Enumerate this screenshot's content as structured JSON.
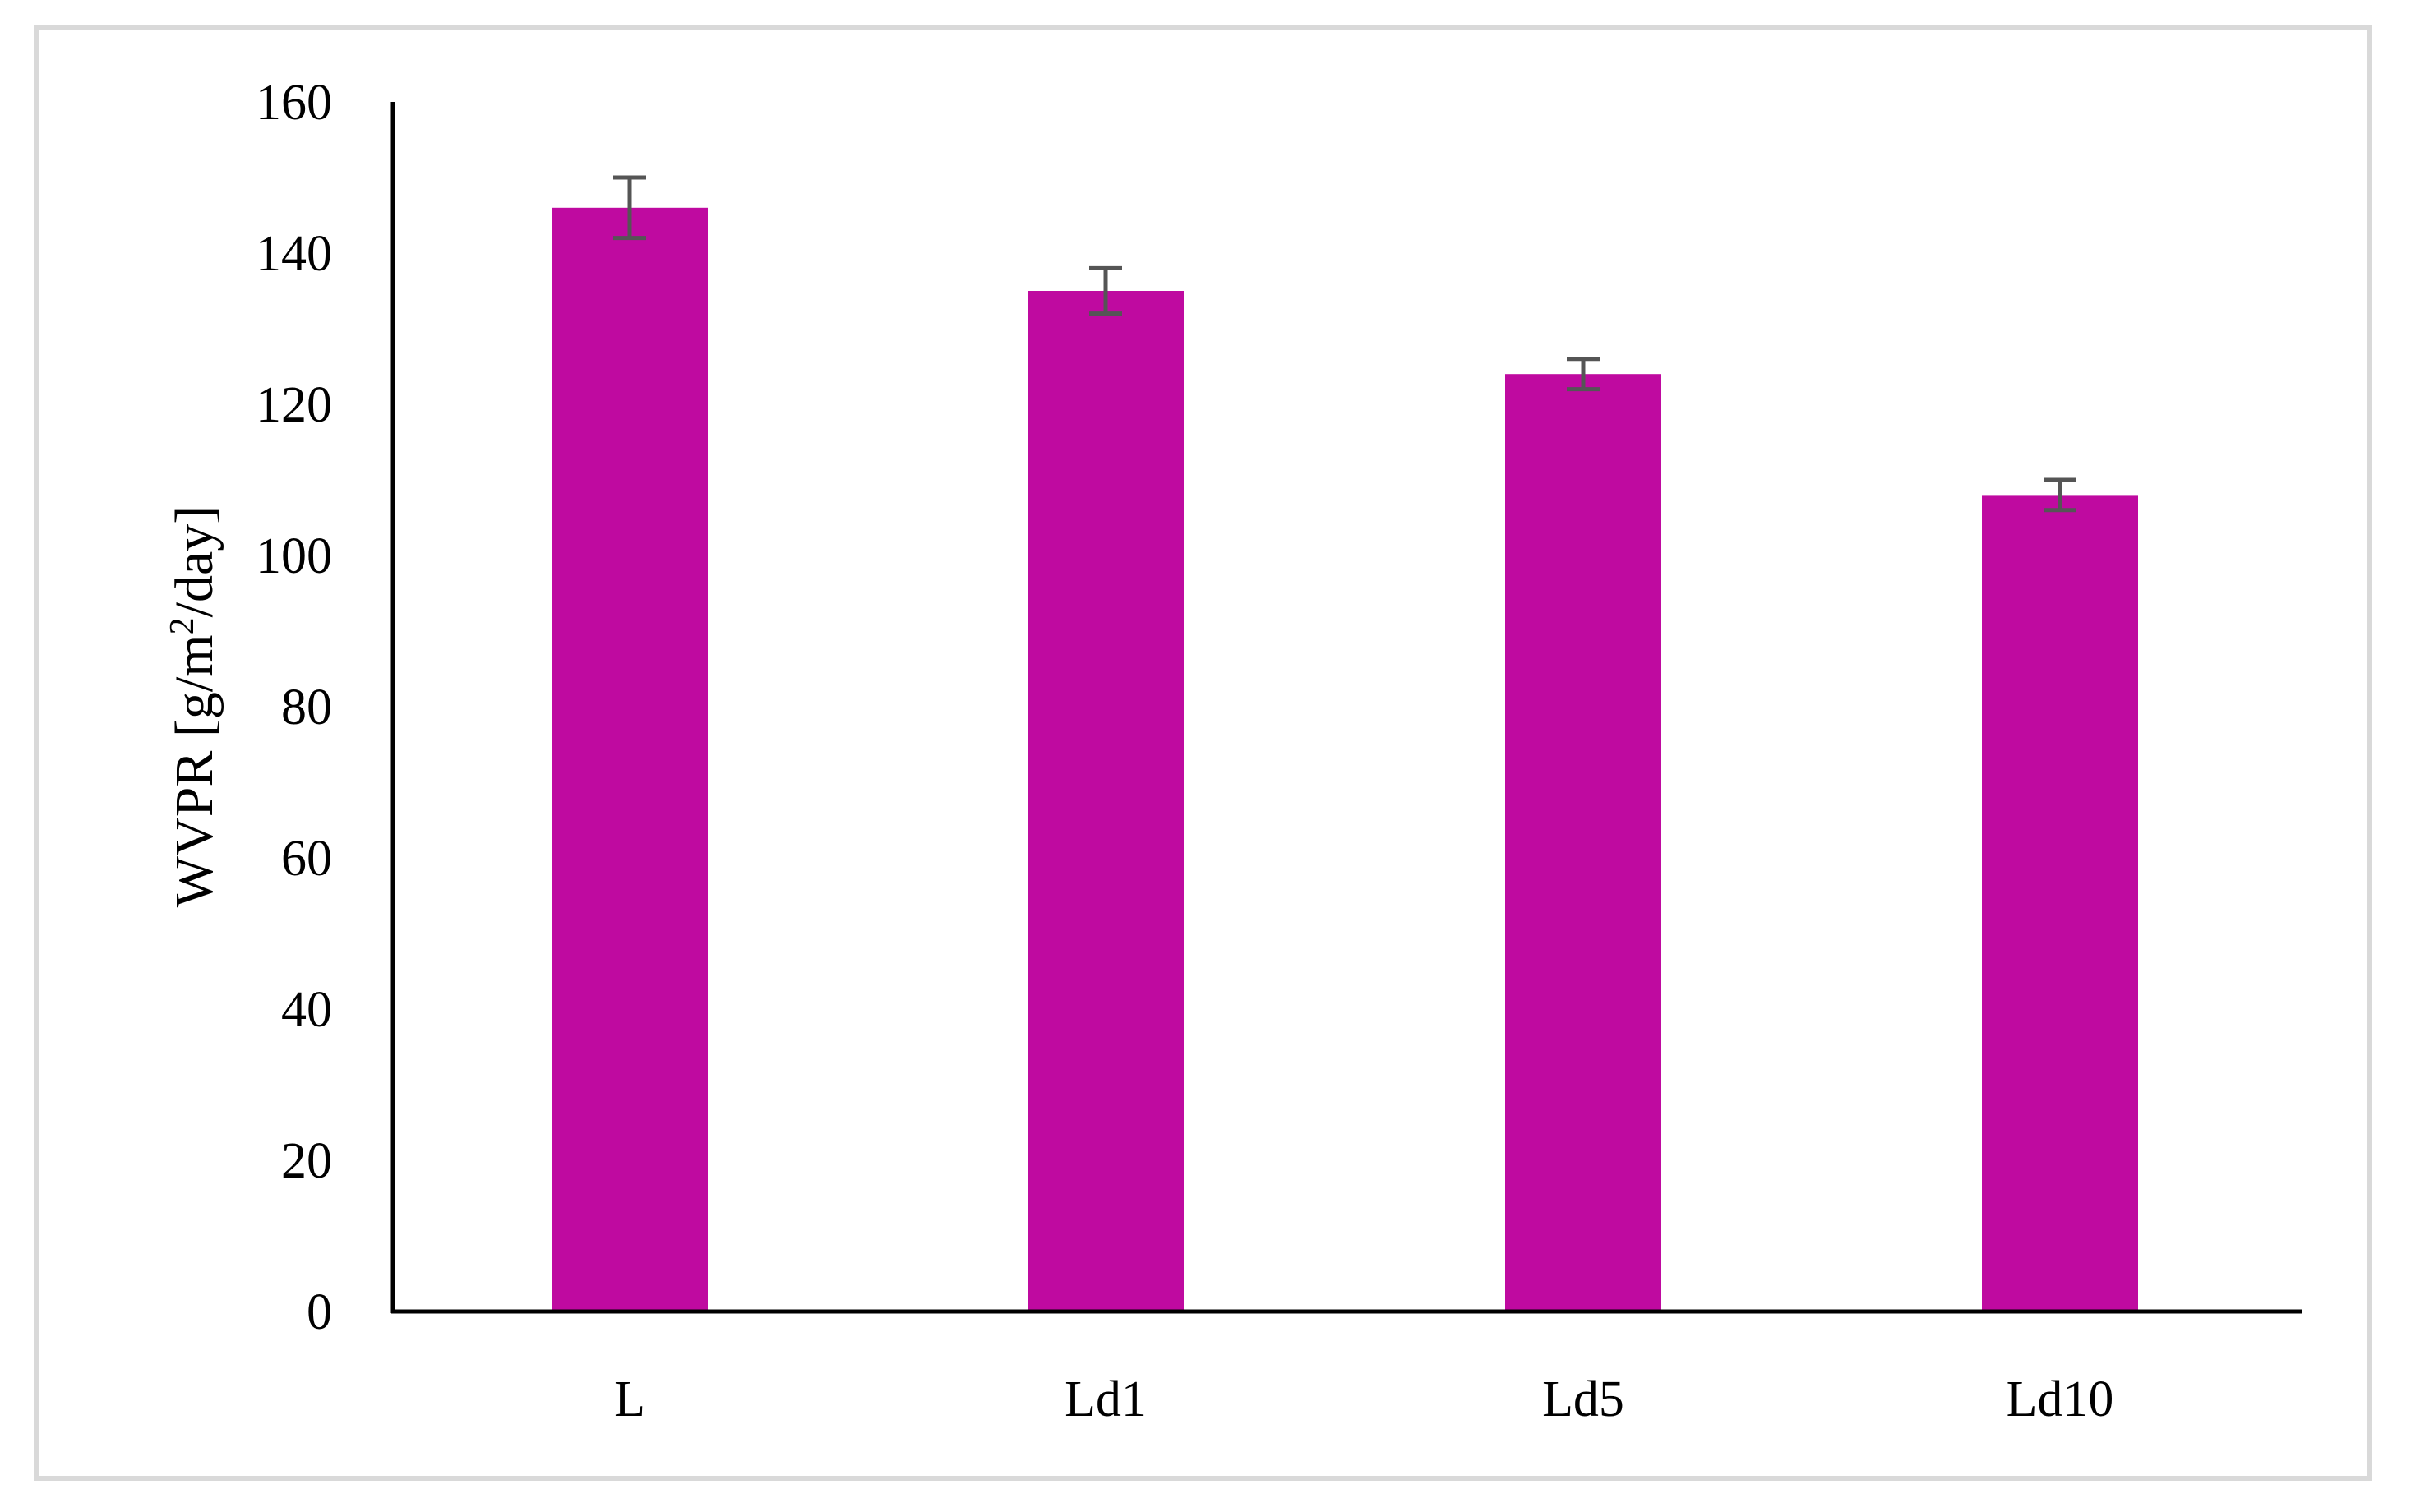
{
  "chart_data": {
    "type": "bar",
    "categories": [
      "L",
      "Ld1",
      "Ld5",
      "Ld10"
    ],
    "values": [
      146,
      135,
      124,
      108
    ],
    "errors": [
      4,
      3,
      2,
      2
    ],
    "ylabel_main": "WVPR [g/m",
    "ylabel_sup": "2",
    "ylabel_tail": "/day]",
    "xlabel": "",
    "title": "",
    "ylim": [
      0,
      160
    ],
    "yticks": [
      0,
      20,
      40,
      60,
      80,
      100,
      120,
      140,
      160
    ],
    "grid": false,
    "legend": "none",
    "bar_color": "#bf0aa0",
    "error_color": "#555555"
  }
}
